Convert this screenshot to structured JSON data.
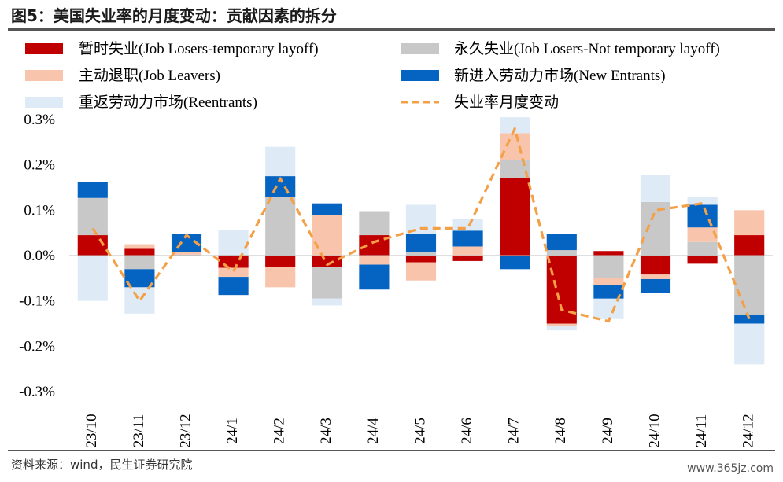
{
  "title": "图5：美国失业率的月度变动：贡献因素的拆分",
  "source": "资料来源：wind，民生证券研究院",
  "watermark": "www.365jz.com",
  "chart_data": {
    "type": "bar",
    "stacked": true,
    "categories": [
      "23/10",
      "23/11",
      "23/12",
      "24/1",
      "24/2",
      "24/3",
      "24/4",
      "24/5",
      "24/6",
      "24/7",
      "24/8",
      "24/9",
      "24/10",
      "24/11",
      "24/12"
    ],
    "ylim": [
      -0.3,
      0.3
    ],
    "yticks": [
      "0.3%",
      "0.2%",
      "0.1%",
      "0.0%",
      "-0.1%",
      "-0.2%",
      "-0.3%"
    ],
    "legend_position": "top",
    "series": [
      {
        "name": "暂时失业(Job Losers-temporary layoff)",
        "color": "#C00000",
        "values": [
          0.045,
          0.015,
          0.0,
          -0.027,
          -0.025,
          -0.025,
          0.045,
          -0.015,
          -0.012,
          0.17,
          -0.15,
          0.01,
          -0.042,
          -0.018,
          0.045
        ]
      },
      {
        "name": "永久失业(Job Losers-Not temporary layoff)",
        "color": "#C8C8C8",
        "values": [
          0.082,
          -0.03,
          0.002,
          0.002,
          0.13,
          -0.07,
          0.053,
          0.007,
          0.0,
          0.04,
          0.012,
          -0.05,
          0.118,
          0.03,
          -0.13
        ]
      },
      {
        "name": "主动退职(Job Leavers)",
        "color": "#F8C4AC",
        "values": [
          0.0,
          0.01,
          0.005,
          -0.02,
          -0.045,
          0.09,
          -0.02,
          -0.04,
          0.02,
          0.06,
          -0.005,
          -0.015,
          -0.01,
          0.032,
          0.055
        ]
      },
      {
        "name": "新进入劳动力市场(New Entrants)",
        "color": "#0563C1",
        "values": [
          0.035,
          -0.04,
          0.04,
          -0.04,
          0.045,
          0.025,
          -0.055,
          0.04,
          0.035,
          -0.03,
          0.035,
          -0.03,
          -0.03,
          0.05,
          -0.02
        ]
      },
      {
        "name": "重返劳动力市场(Reentrants)",
        "color": "#DEEBF7",
        "values": [
          -0.1,
          -0.058,
          0.0,
          0.055,
          0.065,
          -0.015,
          0.0,
          0.065,
          0.025,
          0.035,
          -0.01,
          -0.045,
          0.06,
          0.018,
          -0.09
        ]
      }
    ],
    "line": {
      "name": "失业率月度变动",
      "color": "#F4A047",
      "style": "dashed",
      "values": [
        0.06,
        -0.1,
        0.045,
        -0.035,
        0.17,
        -0.02,
        0.03,
        0.06,
        0.06,
        0.28,
        -0.12,
        -0.145,
        0.1,
        0.115,
        -0.14
      ]
    }
  }
}
